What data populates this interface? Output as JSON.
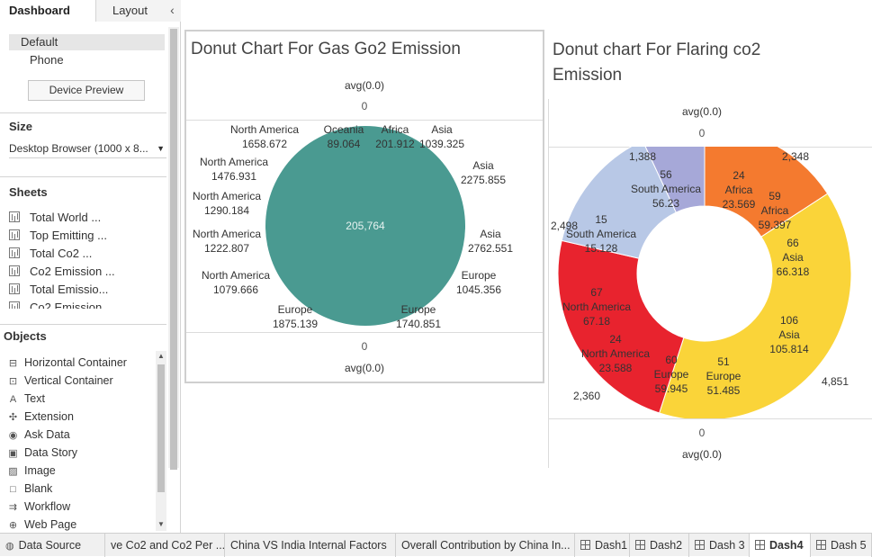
{
  "left_panel": {
    "tabs": {
      "dashboard": "Dashboard",
      "layout": "Layout",
      "collapse": "‹"
    },
    "devices": {
      "default": "Default",
      "phone": "Phone",
      "preview_button": "Device Preview"
    },
    "size": {
      "heading": "Size",
      "value": "Desktop Browser (1000 x 8..."
    },
    "sheets": {
      "heading": "Sheets",
      "items": [
        "Total World ...",
        "Top Emitting ...",
        "Total Co2 ...",
        "Co2 Emission ...",
        "Total Emissio...",
        "Co2 Emission"
      ]
    },
    "objects": {
      "heading": "Objects",
      "items": [
        {
          "label": "Horizontal Container",
          "icon": "horizontal-container-icon",
          "glyph": "⊟"
        },
        {
          "label": "Vertical Container",
          "icon": "vertical-container-icon",
          "glyph": "⊡"
        },
        {
          "label": "Text",
          "icon": "text-icon",
          "glyph": "A"
        },
        {
          "label": "Extension",
          "icon": "extension-icon",
          "glyph": "✣"
        },
        {
          "label": "Ask Data",
          "icon": "ask-data-icon",
          "glyph": "◉"
        },
        {
          "label": "Data Story",
          "icon": "data-story-icon",
          "glyph": "▣"
        },
        {
          "label": "Image",
          "icon": "image-icon",
          "glyph": "▨"
        },
        {
          "label": "Blank",
          "icon": "blank-icon",
          "glyph": "□"
        },
        {
          "label": "Workflow",
          "icon": "workflow-icon",
          "glyph": "⇉"
        },
        {
          "label": "Web Page",
          "icon": "web-page-icon",
          "glyph": "⊕"
        }
      ]
    }
  },
  "gas_chart": {
    "title": "Donut Chart For Gas Go2 Emission",
    "avg_top": "avg(0.0)",
    "avg_bottom": "avg(0.0)",
    "zero_top": "0",
    "zero_bottom": "0",
    "center_total": "205,764",
    "color": "#4a9a91"
  },
  "flare_chart": {
    "title": "Donut chart For Flaring co2 Emission",
    "avg_top": "avg(0.0)",
    "avg_bottom": "avg(0.0)",
    "zero_top": "0",
    "zero_bottom": "0"
  },
  "chart_data": [
    {
      "type": "pie",
      "title": "Donut Chart For Gas Go2 Emission",
      "total": 205764,
      "labels": [
        {
          "region": "North America",
          "value": "1658.672"
        },
        {
          "region": "Oceania",
          "value": "89.064"
        },
        {
          "region": "Africa",
          "value": "201.912"
        },
        {
          "region": "Asia",
          "value": "1039.325"
        },
        {
          "region": "Asia",
          "value": "2275.855"
        },
        {
          "region": "North America",
          "value": "1476.931"
        },
        {
          "region": "North America",
          "value": "1290.184"
        },
        {
          "region": "Asia",
          "value": "2762.551"
        },
        {
          "region": "North America",
          "value": "1222.807"
        },
        {
          "region": "Europe",
          "value": "1045.356"
        },
        {
          "region": "North America",
          "value": "1079.666"
        },
        {
          "region": "Europe",
          "value": "1875.139"
        },
        {
          "region": "Europe",
          "value": "1740.851"
        }
      ]
    },
    {
      "type": "pie",
      "title": "Donut chart For Flaring co2 Emission",
      "series": [
        {
          "name": "Africa",
          "total": "2,348",
          "color": "#f47a2f",
          "segments": [
            {
              "count": "24",
              "region": "Africa",
              "value": "23.569"
            },
            {
              "count": "59",
              "region": "Africa",
              "value": "59.397"
            }
          ]
        },
        {
          "name": "Asia",
          "total": "4,851",
          "color": "#fad439",
          "segments": [
            {
              "count": "66",
              "region": "Asia",
              "value": "66.318"
            },
            {
              "count": "106",
              "region": "Asia",
              "value": "105.814"
            }
          ]
        },
        {
          "name": "Europe",
          "total": "",
          "color": "#fad439",
          "segments": [
            {
              "count": "51",
              "region": "Europe",
              "value": "51.485"
            }
          ]
        },
        {
          "name": "Europe",
          "total": "2,360",
          "color": "#e8232e",
          "segments": [
            {
              "count": "60",
              "region": "Europe",
              "value": "59.945"
            }
          ]
        },
        {
          "name": "North America",
          "total": "",
          "color": "#e8232e",
          "segments": [
            {
              "count": "24",
              "region": "North America",
              "value": "23.588"
            },
            {
              "count": "67",
              "region": "North America",
              "value": "67.18"
            }
          ]
        },
        {
          "name": "South America",
          "total": "2,498",
          "color": "#b8c8e6",
          "segments": [
            {
              "count": "15",
              "region": "South America",
              "value": "15.128"
            }
          ]
        },
        {
          "name": "South America",
          "total": "1,388",
          "color": "#a6a8d8",
          "segments": [
            {
              "count": "56",
              "region": "South America",
              "value": "56.23"
            }
          ]
        }
      ],
      "slices": [
        {
          "start": 0,
          "end": 57,
          "color": "#f47a2f"
        },
        {
          "start": 57,
          "end": 198,
          "color": "#fad439"
        },
        {
          "start": 198,
          "end": 283,
          "color": "#e8232e"
        },
        {
          "start": 283,
          "end": 335,
          "color": "#b8c8e6"
        },
        {
          "start": 335,
          "end": 360,
          "color": "#a6a8d8"
        }
      ]
    }
  ],
  "bottom_tabs": [
    {
      "label": "Data Source",
      "kind": "datasource",
      "active": false
    },
    {
      "label": "ve Co2 and Co2 Per ...",
      "kind": "sheet",
      "active": false
    },
    {
      "label": "China VS India Internal Factors",
      "kind": "sheet",
      "active": false
    },
    {
      "label": "Overall Contribution by  China In...",
      "kind": "sheet",
      "active": false
    },
    {
      "label": "Dash1",
      "kind": "dashboard",
      "active": false
    },
    {
      "label": "Dash2",
      "kind": "dashboard",
      "active": false
    },
    {
      "label": "Dash 3",
      "kind": "dashboard",
      "active": false
    },
    {
      "label": "Dash4",
      "kind": "dashboard",
      "active": true
    },
    {
      "label": "Dash 5",
      "kind": "dashboard",
      "active": false
    }
  ]
}
